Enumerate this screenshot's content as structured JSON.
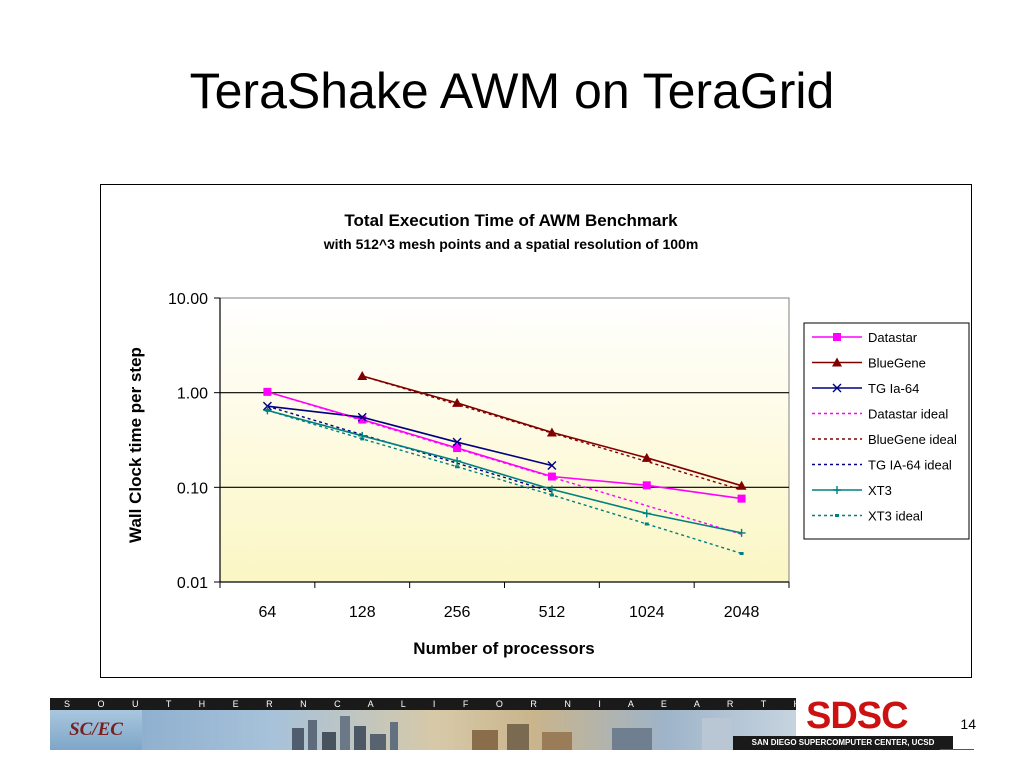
{
  "slide": {
    "title": "TeraShake AWM on TeraGrid",
    "page_number": "14"
  },
  "footer": {
    "strip_text": "S O U T H E R N   C A L I F O R N I A   E A R T H Q U A K E   C E N T E R",
    "scec_logo_text": "SC/EC",
    "sdsc_logo_text": "SDSC",
    "sdsc_caption": "SAN DIEGO SUPERCOMPUTER CENTER, UCSD"
  },
  "chart_data": {
    "type": "line",
    "title": "Total Execution Time of AWM Benchmark",
    "subtitle": "with 512^3 mesh points and a spatial resolution of 100m",
    "xlabel": "Number of processors",
    "ylabel": "Wall Clock time per step",
    "y_scale": "log",
    "ylim": [
      0.01,
      10
    ],
    "y_ticks": [
      "10.00",
      "1.00",
      "0.10",
      "0.01"
    ],
    "categories": [
      "64",
      "128",
      "256",
      "512",
      "1024",
      "2048"
    ],
    "plot_background": "light yellow gradient",
    "legend_position": "right",
    "series": [
      {
        "name": "Datastar",
        "color": "#ff00ff",
        "style": "solid",
        "marker": "square",
        "values": [
          1.02,
          0.52,
          0.26,
          0.13,
          0.105,
          0.076
        ]
      },
      {
        "name": "BlueGene",
        "color": "#800000",
        "style": "solid",
        "marker": "triangle",
        "values": [
          null,
          1.5,
          0.78,
          0.38,
          0.205,
          0.104
        ]
      },
      {
        "name": "TG Ia-64",
        "color": "#000080",
        "style": "solid",
        "marker": "x",
        "values": [
          0.72,
          0.55,
          0.3,
          0.17,
          null,
          null
        ]
      },
      {
        "name": "Datastar ideal",
        "color": "#ff00ff",
        "style": "dotted",
        "marker": "none",
        "values": [
          1.02,
          0.51,
          0.255,
          0.128,
          0.064,
          0.032
        ]
      },
      {
        "name": "BlueGene ideal",
        "color": "#800000",
        "style": "dotted",
        "marker": "none",
        "values": [
          null,
          1.5,
          0.75,
          0.375,
          0.1875,
          0.094
        ]
      },
      {
        "name": "TG IA-64 ideal",
        "color": "#000080",
        "style": "dotted",
        "marker": "none",
        "values": [
          0.72,
          0.36,
          0.18,
          0.09,
          null,
          null
        ]
      },
      {
        "name": "XT3",
        "color": "#008080",
        "style": "solid",
        "marker": "plus",
        "values": [
          0.65,
          0.35,
          0.19,
          0.095,
          0.053,
          0.033
        ]
      },
      {
        "name": "XT3 ideal",
        "color": "#008080",
        "style": "dotted",
        "marker": "dot",
        "values": [
          0.65,
          0.325,
          0.165,
          0.083,
          0.041,
          0.02
        ]
      }
    ]
  }
}
